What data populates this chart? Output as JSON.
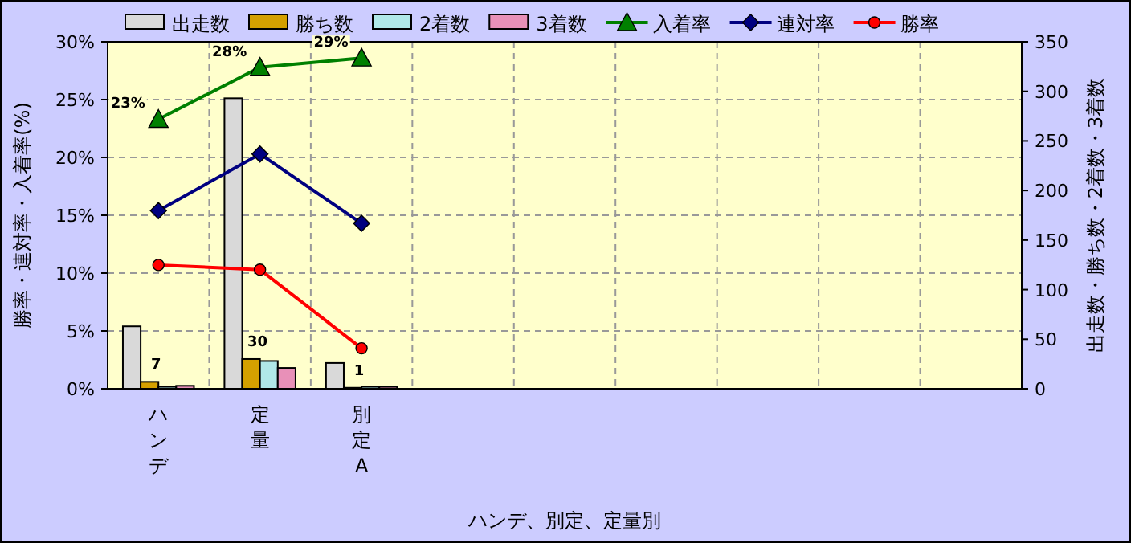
{
  "chart_data": {
    "type": "bar",
    "xlabel": "ハンデ、別定、定量別",
    "ylabel": "勝率・連対率・入着率(%)",
    "y2label": "出走数・勝ち数・2着数・3着数",
    "categories": [
      "ハンデ",
      "定量",
      "別定A",
      null,
      null,
      null,
      null,
      null,
      null
    ],
    "series": [
      {
        "name": "出走数",
        "axis": "y2",
        "color": "#d9d9d9",
        "values": [
          63,
          293,
          26,
          null,
          null,
          null,
          null,
          null,
          null
        ]
      },
      {
        "name": "勝ち数",
        "axis": "y2",
        "color": "#d4a000",
        "values": [
          7,
          30,
          1,
          null,
          null,
          null,
          null,
          null,
          null
        ],
        "value_labels": [
          "7",
          "30",
          "1",
          null,
          null,
          null,
          null,
          null,
          null
        ]
      },
      {
        "name": "2着数",
        "axis": "y2",
        "color": "#b0e8e8",
        "values": [
          2,
          28,
          2,
          null,
          null,
          null,
          null,
          null,
          null
        ]
      },
      {
        "name": "3着数",
        "axis": "y2",
        "color": "#e890b8",
        "values": [
          3,
          21,
          2,
          null,
          null,
          null,
          null,
          null,
          null
        ]
      },
      {
        "name": "入着率",
        "type": "line",
        "axis": "y",
        "color": "#008000",
        "marker": "triangle",
        "values": [
          23.3,
          27.8,
          28.6,
          null,
          null,
          null,
          null,
          null,
          null
        ],
        "value_labels": [
          "23%",
          "28%",
          "29%",
          null,
          null,
          null,
          null,
          null,
          null
        ]
      },
      {
        "name": "連対率",
        "type": "line",
        "axis": "y",
        "color": "#000080",
        "marker": "diamond",
        "values": [
          15.4,
          20.3,
          14.3,
          null,
          null,
          null,
          null,
          null,
          null
        ]
      },
      {
        "name": "勝率",
        "type": "line",
        "axis": "y",
        "color": "#ff0000",
        "marker": "circle",
        "values": [
          10.7,
          10.3,
          3.5,
          null,
          null,
          null,
          null,
          null,
          null
        ]
      }
    ],
    "ylim": [
      0,
      30
    ],
    "yticks": [
      {
        "value": 0,
        "label": "0%"
      },
      {
        "value": 5,
        "label": "5%"
      },
      {
        "value": 10,
        "label": "10%"
      },
      {
        "value": 15,
        "label": "15%"
      },
      {
        "value": 20,
        "label": "20%"
      },
      {
        "value": 25,
        "label": "25%"
      },
      {
        "value": 30,
        "label": "30%"
      }
    ],
    "y2lim": [
      0,
      350
    ],
    "y2ticks": [
      0,
      50,
      100,
      150,
      200,
      250,
      300,
      350
    ],
    "grid": true,
    "legend": "top"
  }
}
